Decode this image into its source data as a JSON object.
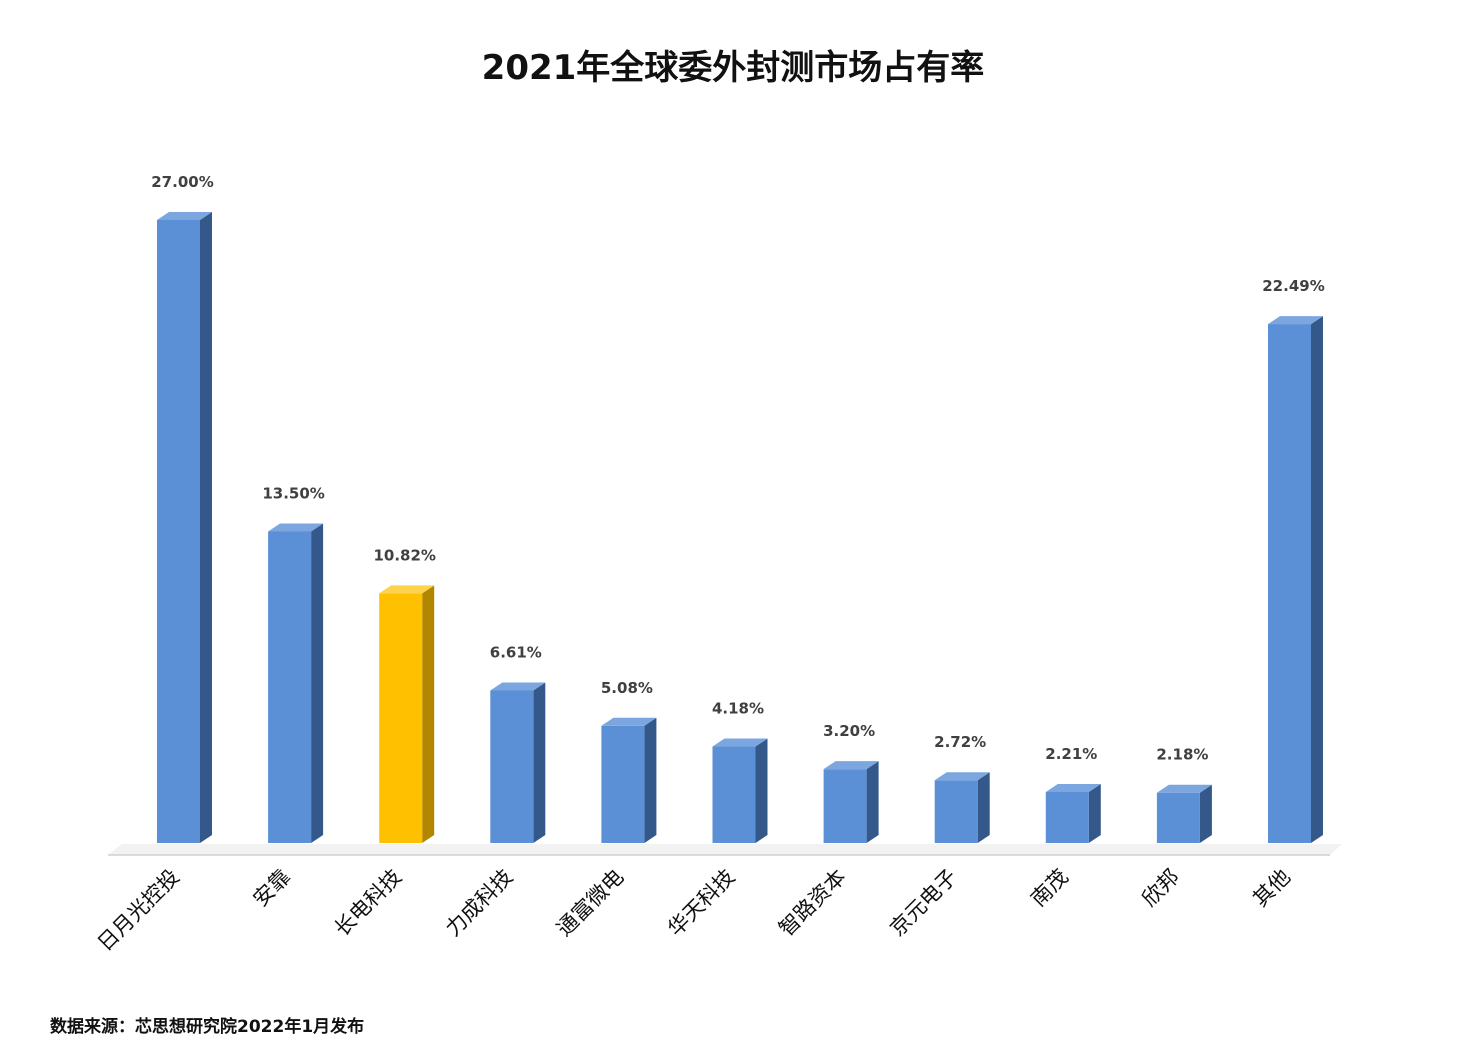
{
  "chart_data": {
    "type": "bar",
    "title": "2021年全球委外封测市场占有率",
    "categories": [
      "日月光控投",
      "安靠",
      "长电科技",
      "力成科技",
      "通富微电",
      "华天科技",
      "智路资本",
      "京元电子",
      "南茂",
      "欣邦",
      "其他"
    ],
    "values": [
      27.0,
      13.5,
      10.82,
      6.61,
      5.08,
      4.18,
      3.2,
      2.72,
      2.21,
      2.18,
      22.49
    ],
    "data_labels": [
      "27.00%",
      "13.50%",
      "10.82%",
      "6.61%",
      "5.08%",
      "4.18%",
      "3.20%",
      "2.72%",
      "2.21%",
      "2.18%",
      "22.49%"
    ],
    "unit": "%",
    "highlight_index": 2,
    "colors": {
      "bar": "#5B8FD6",
      "bar_side": "#34588A",
      "bar_top": "#7BA6E0",
      "highlight": "#FFC000",
      "highlight_side": "#B38600",
      "highlight_top": "#FFD24D"
    },
    "style": "3d-column",
    "grid": false,
    "legend": "none",
    "xlabel": "",
    "ylabel": "",
    "ylim": [
      0,
      27
    ]
  },
  "source_note": "数据来源：芯思想研究院2022年1月发布"
}
